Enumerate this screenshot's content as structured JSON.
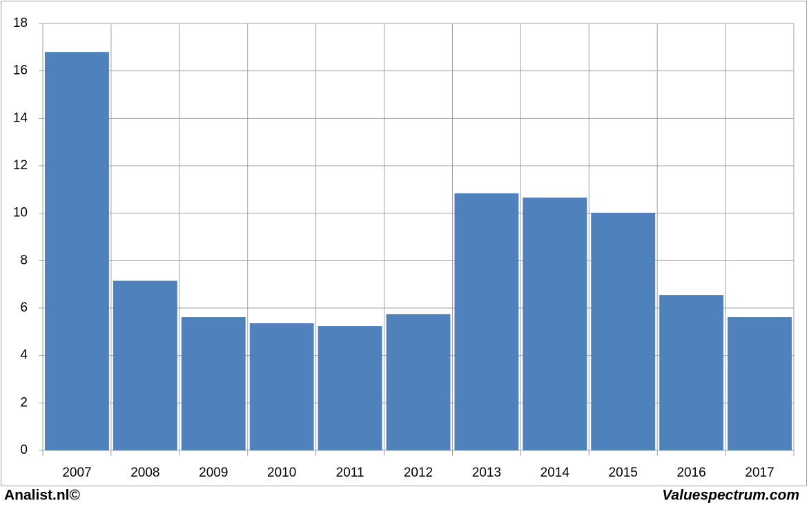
{
  "chart_data": {
    "type": "bar",
    "categories": [
      "2007",
      "2008",
      "2009",
      "2010",
      "2011",
      "2012",
      "2013",
      "2014",
      "2015",
      "2016",
      "2017"
    ],
    "values": [
      16.8,
      7.15,
      5.62,
      5.36,
      5.24,
      5.74,
      10.84,
      10.66,
      10.02,
      6.55,
      5.62
    ],
    "color": "#4f81bd",
    "ylim": [
      0,
      18
    ],
    "yticks": [
      0,
      2,
      4,
      6,
      8,
      10,
      12,
      14,
      16,
      18
    ],
    "grid": true,
    "footer_left": "Analist.nl©",
    "footer_right": "Valuespectrum.com"
  }
}
